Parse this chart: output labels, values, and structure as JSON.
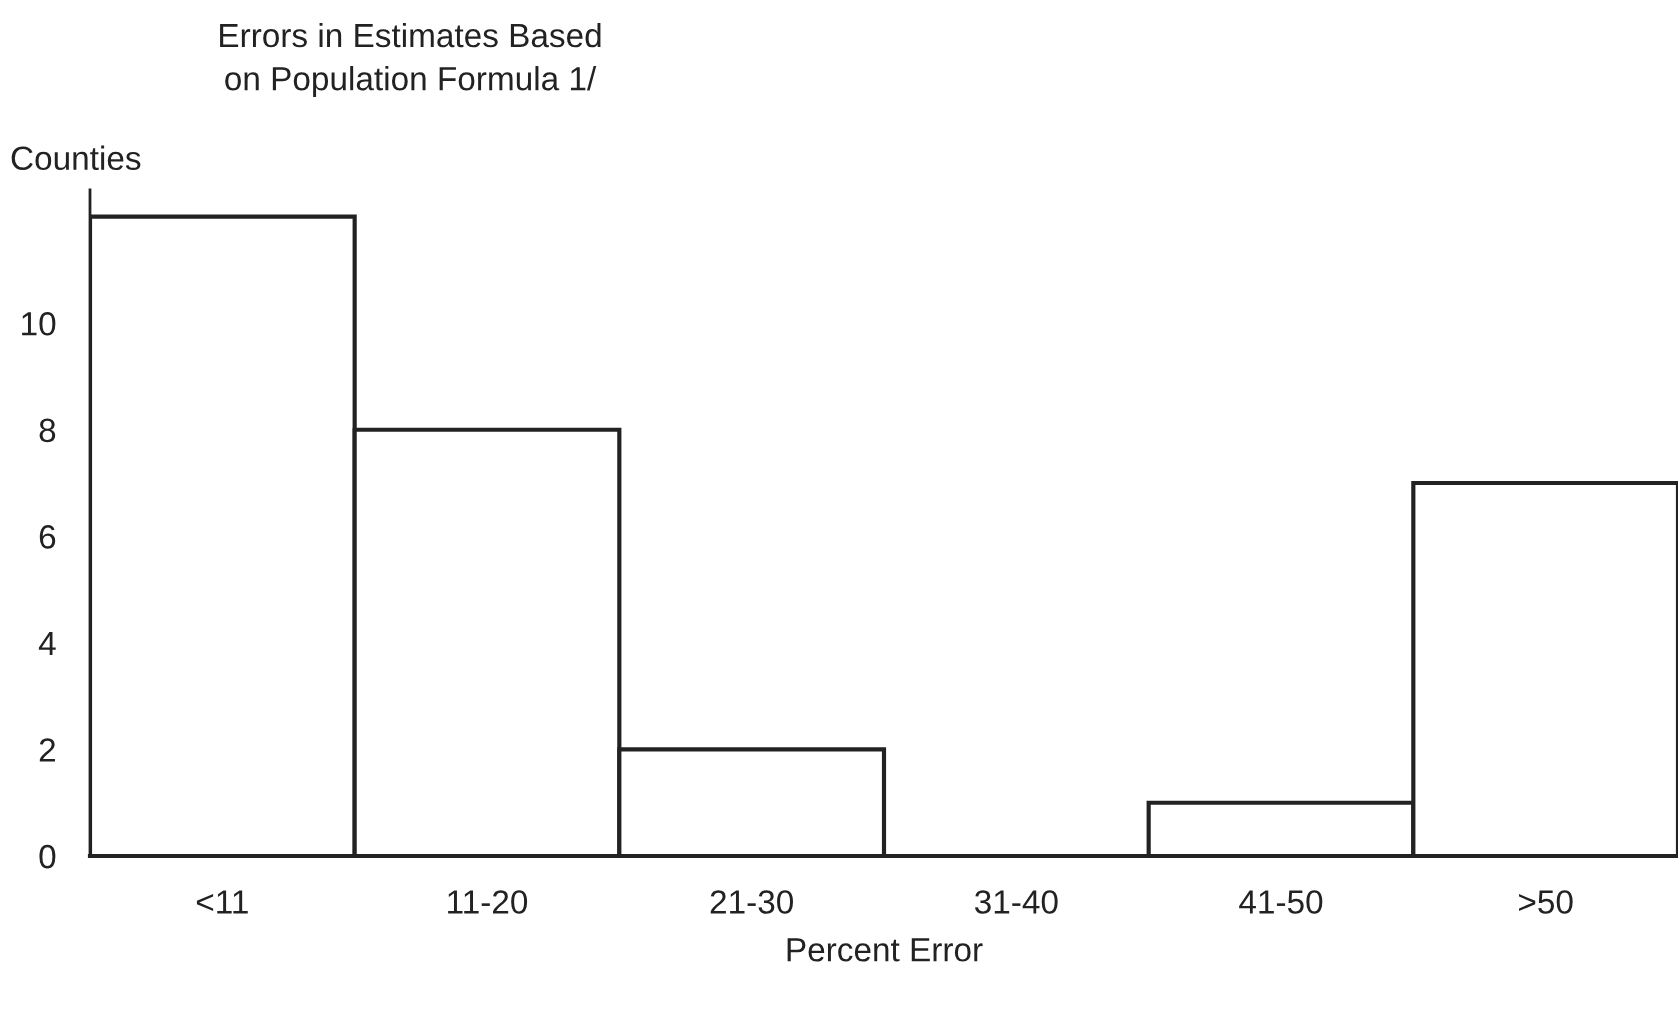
{
  "chart_data": {
    "type": "bar",
    "title": "Errors in Estimates Based\non Population Formula 1/",
    "xlabel": "Percent Error",
    "ylabel": "Counties",
    "categories": [
      "<11",
      "11-20",
      "21-30",
      "31-40",
      "41-50",
      ">50"
    ],
    "values": [
      12,
      8,
      2,
      0,
      1,
      7
    ],
    "color": "#222222",
    "ylim": [
      0,
      12.5
    ],
    "yticks": [
      0,
      2,
      4,
      6,
      8,
      10
    ],
    "grid": false
  }
}
